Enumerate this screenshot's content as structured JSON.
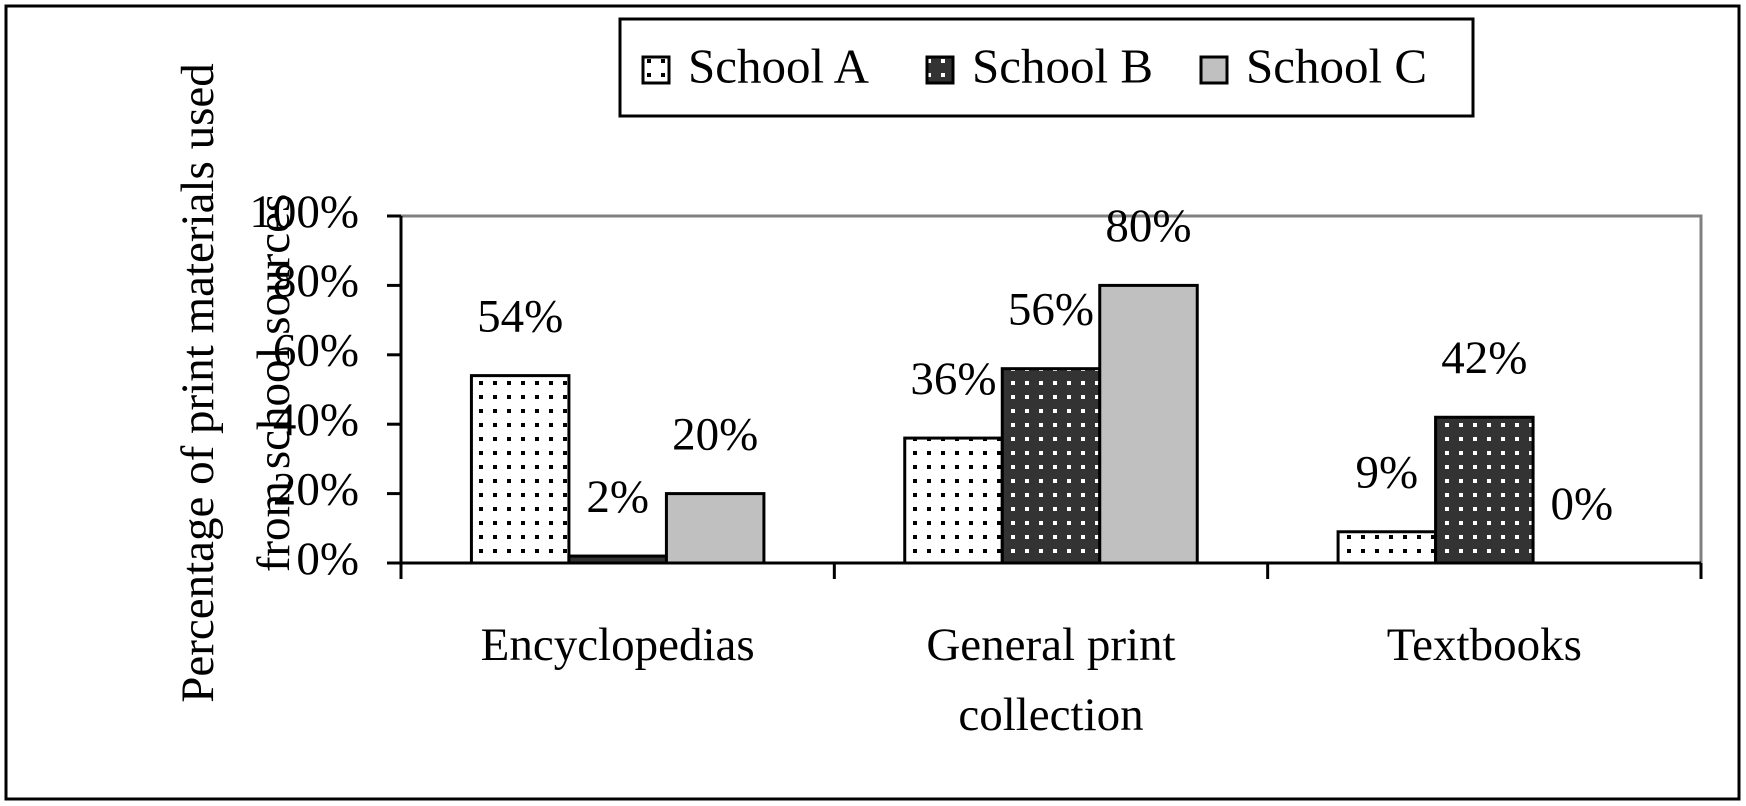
{
  "chart_data": {
    "type": "bar",
    "y_label": "Percentage of print materials used from school sources",
    "categories": [
      "Encyclopedias",
      "General print collection",
      "Textbooks"
    ],
    "series": [
      {
        "name": "School A",
        "color": "#ffffff",
        "values": [
          54,
          36,
          9
        ],
        "value_labels": [
          "54%",
          "36%",
          "9%"
        ]
      },
      {
        "name": "School B",
        "color": "#333333",
        "values": [
          2,
          56,
          42
        ],
        "value_labels": [
          "2%",
          "56%",
          "42%"
        ]
      },
      {
        "name": "School C",
        "color": "#c0c0c0",
        "values": [
          20,
          80,
          0
        ],
        "value_labels": [
          "20%",
          "80%",
          "0%"
        ]
      }
    ],
    "ylim": [
      0,
      100
    ],
    "yticks": [
      {
        "value": 0,
        "label": "0%"
      },
      {
        "value": 20,
        "label": "20%"
      },
      {
        "value": 40,
        "label": "40%"
      },
      {
        "value": 60,
        "label": "60%"
      },
      {
        "value": 80,
        "label": "80%"
      },
      {
        "value": 100,
        "label": "100%"
      }
    ],
    "grid": false,
    "legend": "top"
  }
}
